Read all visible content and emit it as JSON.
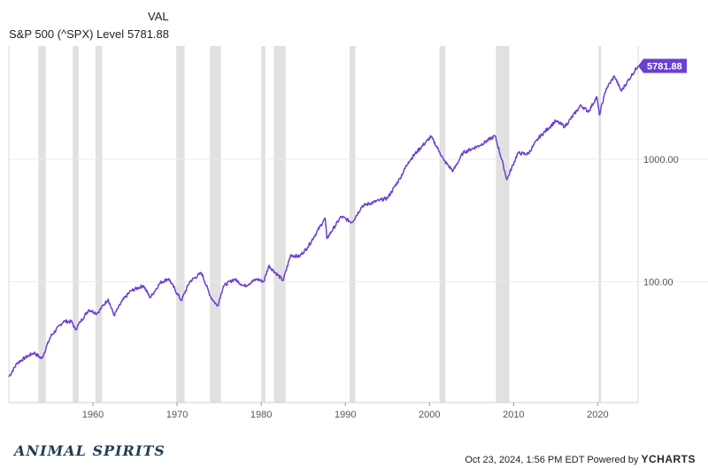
{
  "header": {
    "column_label": "VAL",
    "series_name": "S&P 500 (^SPX) Level",
    "series_value": "5781.88"
  },
  "footer": {
    "brand": "ANIMAL SPIRITS",
    "timestamp": "Oct 23, 2024, 1:56 PM EDT",
    "powered_by": "Powered by",
    "provider": "YCHARTS"
  },
  "colors": {
    "line": "#6a3fd1",
    "recession": "#e1e1e1",
    "grid": "#ececec",
    "last_value_badge": "#6a3fd1"
  },
  "chart_data": {
    "type": "line",
    "y_scale": "log",
    "ylim": [
      10.3,
      8400
    ],
    "xlim": [
      1950.0,
      2024.8
    ],
    "x_ticks": [
      1960,
      1970,
      1980,
      1990,
      2000,
      2010,
      2020
    ],
    "x_tick_labels": [
      "1960",
      "1970",
      "1980",
      "1990",
      "2000",
      "2010",
      "2020"
    ],
    "y_ticks": [
      100,
      1000
    ],
    "y_tick_labels": [
      "100.00",
      "1000.00"
    ],
    "last_value_label": "5781.88",
    "recessions": [
      [
        1953.5,
        1954.4
      ],
      [
        1957.6,
        1958.3
      ],
      [
        1960.3,
        1961.1
      ],
      [
        1969.9,
        1970.9
      ],
      [
        1973.9,
        1975.2
      ],
      [
        1980.0,
        1980.5
      ],
      [
        1981.5,
        1982.9
      ],
      [
        1990.5,
        1991.2
      ],
      [
        2001.2,
        2001.9
      ],
      [
        2007.9,
        2009.5
      ],
      [
        2020.1,
        2020.4
      ]
    ],
    "series": [
      {
        "points": [
          [
            1950.0,
            16.7
          ],
          [
            1951.0,
            21.7
          ],
          [
            1952.0,
            24.1
          ],
          [
            1953.0,
            26.3
          ],
          [
            1953.9,
            23.5
          ],
          [
            1955.0,
            36.0
          ],
          [
            1956.5,
            47.5
          ],
          [
            1957.5,
            47.0
          ],
          [
            1957.9,
            40.4
          ],
          [
            1958.5,
            47.0
          ],
          [
            1959.5,
            59.0
          ],
          [
            1960.5,
            55.0
          ],
          [
            1961.8,
            72.0
          ],
          [
            1962.5,
            53.0
          ],
          [
            1963.5,
            70.0
          ],
          [
            1964.5,
            84.0
          ],
          [
            1966.0,
            93.0
          ],
          [
            1966.8,
            74.0
          ],
          [
            1968.0,
            98.0
          ],
          [
            1969.0,
            106.0
          ],
          [
            1970.5,
            70.0
          ],
          [
            1971.5,
            100.0
          ],
          [
            1972.9,
            118.0
          ],
          [
            1974.0,
            75.0
          ],
          [
            1974.8,
            63.0
          ],
          [
            1975.5,
            92.0
          ],
          [
            1976.8,
            105.0
          ],
          [
            1978.0,
            92.0
          ],
          [
            1979.5,
            105.0
          ],
          [
            1980.3,
            100.0
          ],
          [
            1980.9,
            135.0
          ],
          [
            1982.6,
            102.0
          ],
          [
            1983.5,
            165.0
          ],
          [
            1984.5,
            160.0
          ],
          [
            1985.5,
            190.0
          ],
          [
            1987.6,
            330.0
          ],
          [
            1987.8,
            225.0
          ],
          [
            1989.5,
            340.0
          ],
          [
            1990.8,
            305.0
          ],
          [
            1992.0,
            415.0
          ],
          [
            1994.0,
            460.0
          ],
          [
            1995.0,
            480.0
          ],
          [
            1996.5,
            700.0
          ],
          [
            1997.5,
            950.0
          ],
          [
            1998.5,
            1150.0
          ],
          [
            2000.2,
            1530.0
          ],
          [
            2001.2,
            1150.0
          ],
          [
            2001.7,
            980.0
          ],
          [
            2002.8,
            800.0
          ],
          [
            2004.0,
            1130.0
          ],
          [
            2006.0,
            1300.0
          ],
          [
            2007.8,
            1550.0
          ],
          [
            2008.8,
            880.0
          ],
          [
            2009.2,
            680.0
          ],
          [
            2010.5,
            1120.0
          ],
          [
            2011.7,
            1100.0
          ],
          [
            2013.0,
            1500.0
          ],
          [
            2015.0,
            2050.0
          ],
          [
            2016.1,
            1850.0
          ],
          [
            2018.0,
            2750.0
          ],
          [
            2018.9,
            2450.0
          ],
          [
            2019.9,
            3230.0
          ],
          [
            2020.2,
            2300.0
          ],
          [
            2021.0,
            3750.0
          ],
          [
            2021.99,
            4770.0
          ],
          [
            2022.8,
            3600.0
          ],
          [
            2024.0,
            4800.0
          ],
          [
            2024.8,
            5781.88
          ]
        ]
      }
    ]
  }
}
